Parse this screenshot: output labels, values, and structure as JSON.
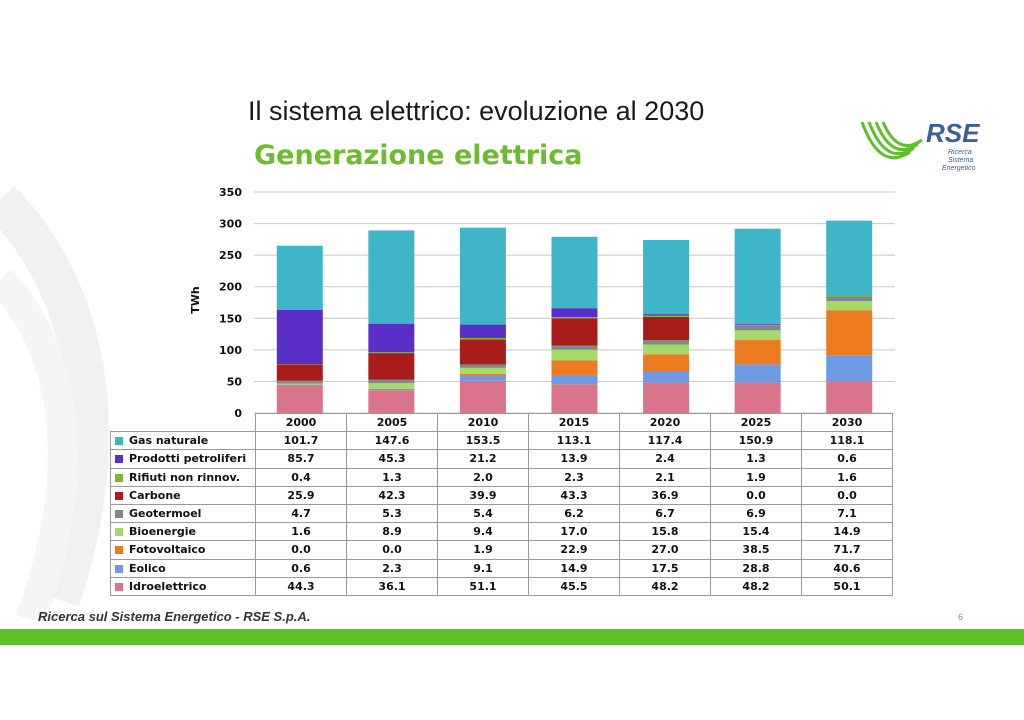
{
  "slide": {
    "title": "Il sistema elettrico: evoluzione al 2030",
    "subtitle": "Generazione elettrica",
    "footer": "Ricerca sul Sistema Energetico - RSE S.p.A.",
    "page_number": "6"
  },
  "logo": {
    "name": "RSE",
    "line1": "Ricerca",
    "line2": "Sistema",
    "line3": "Energetico"
  },
  "colors": {
    "accent_green": "#5cc02a",
    "title_green": "#6dbb2f",
    "logo_blue": "#3a5f9a"
  },
  "chart_data": {
    "type": "bar",
    "stacked": true,
    "categories": [
      "2000",
      "2005",
      "2010",
      "2015",
      "2020",
      "2025",
      "2030"
    ],
    "ylabel": "TWh",
    "ylim": [
      0,
      350
    ],
    "yticks": [
      0,
      50,
      100,
      150,
      200,
      250,
      300,
      350
    ],
    "grid": true,
    "legend": "table-below",
    "series": [
      {
        "name": "Idroelettrico",
        "color": "#d9748a",
        "values": [
          44.3,
          36.1,
          51.1,
          45.5,
          48.2,
          48.2,
          50.1
        ]
      },
      {
        "name": "Eolico",
        "color": "#6d9ae3",
        "values": [
          0.6,
          2.3,
          9.1,
          14.9,
          17.5,
          28.8,
          40.6
        ]
      },
      {
        "name": "Fotovoltaico",
        "color": "#ec7a1e",
        "values": [
          0.0,
          0.0,
          1.9,
          22.9,
          27.0,
          38.5,
          71.7
        ]
      },
      {
        "name": "Bioenergie",
        "color": "#a6d86a",
        "values": [
          1.6,
          8.9,
          9.4,
          17.0,
          15.8,
          15.4,
          14.9
        ]
      },
      {
        "name": "Geotermoel",
        "color": "#7d8a88",
        "values": [
          4.7,
          5.3,
          5.4,
          6.2,
          6.7,
          6.9,
          7.1
        ]
      },
      {
        "name": "Carbone",
        "color": "#a81c1c",
        "values": [
          25.9,
          42.3,
          39.9,
          43.3,
          36.9,
          0.0,
          0.0
        ]
      },
      {
        "name": "Rifiuti non rinnov.",
        "color": "#78b92e",
        "values": [
          0.4,
          1.3,
          2.0,
          2.3,
          2.1,
          1.9,
          1.6
        ]
      },
      {
        "name": "Prodotti petroliferi",
        "color": "#5a2fc8",
        "values": [
          85.7,
          45.3,
          21.2,
          13.9,
          2.4,
          1.3,
          0.6
        ]
      },
      {
        "name": "Gas naturale",
        "color": "#3fb6c8",
        "values": [
          101.7,
          147.6,
          153.5,
          113.1,
          117.4,
          150.9,
          118.1
        ]
      }
    ]
  }
}
